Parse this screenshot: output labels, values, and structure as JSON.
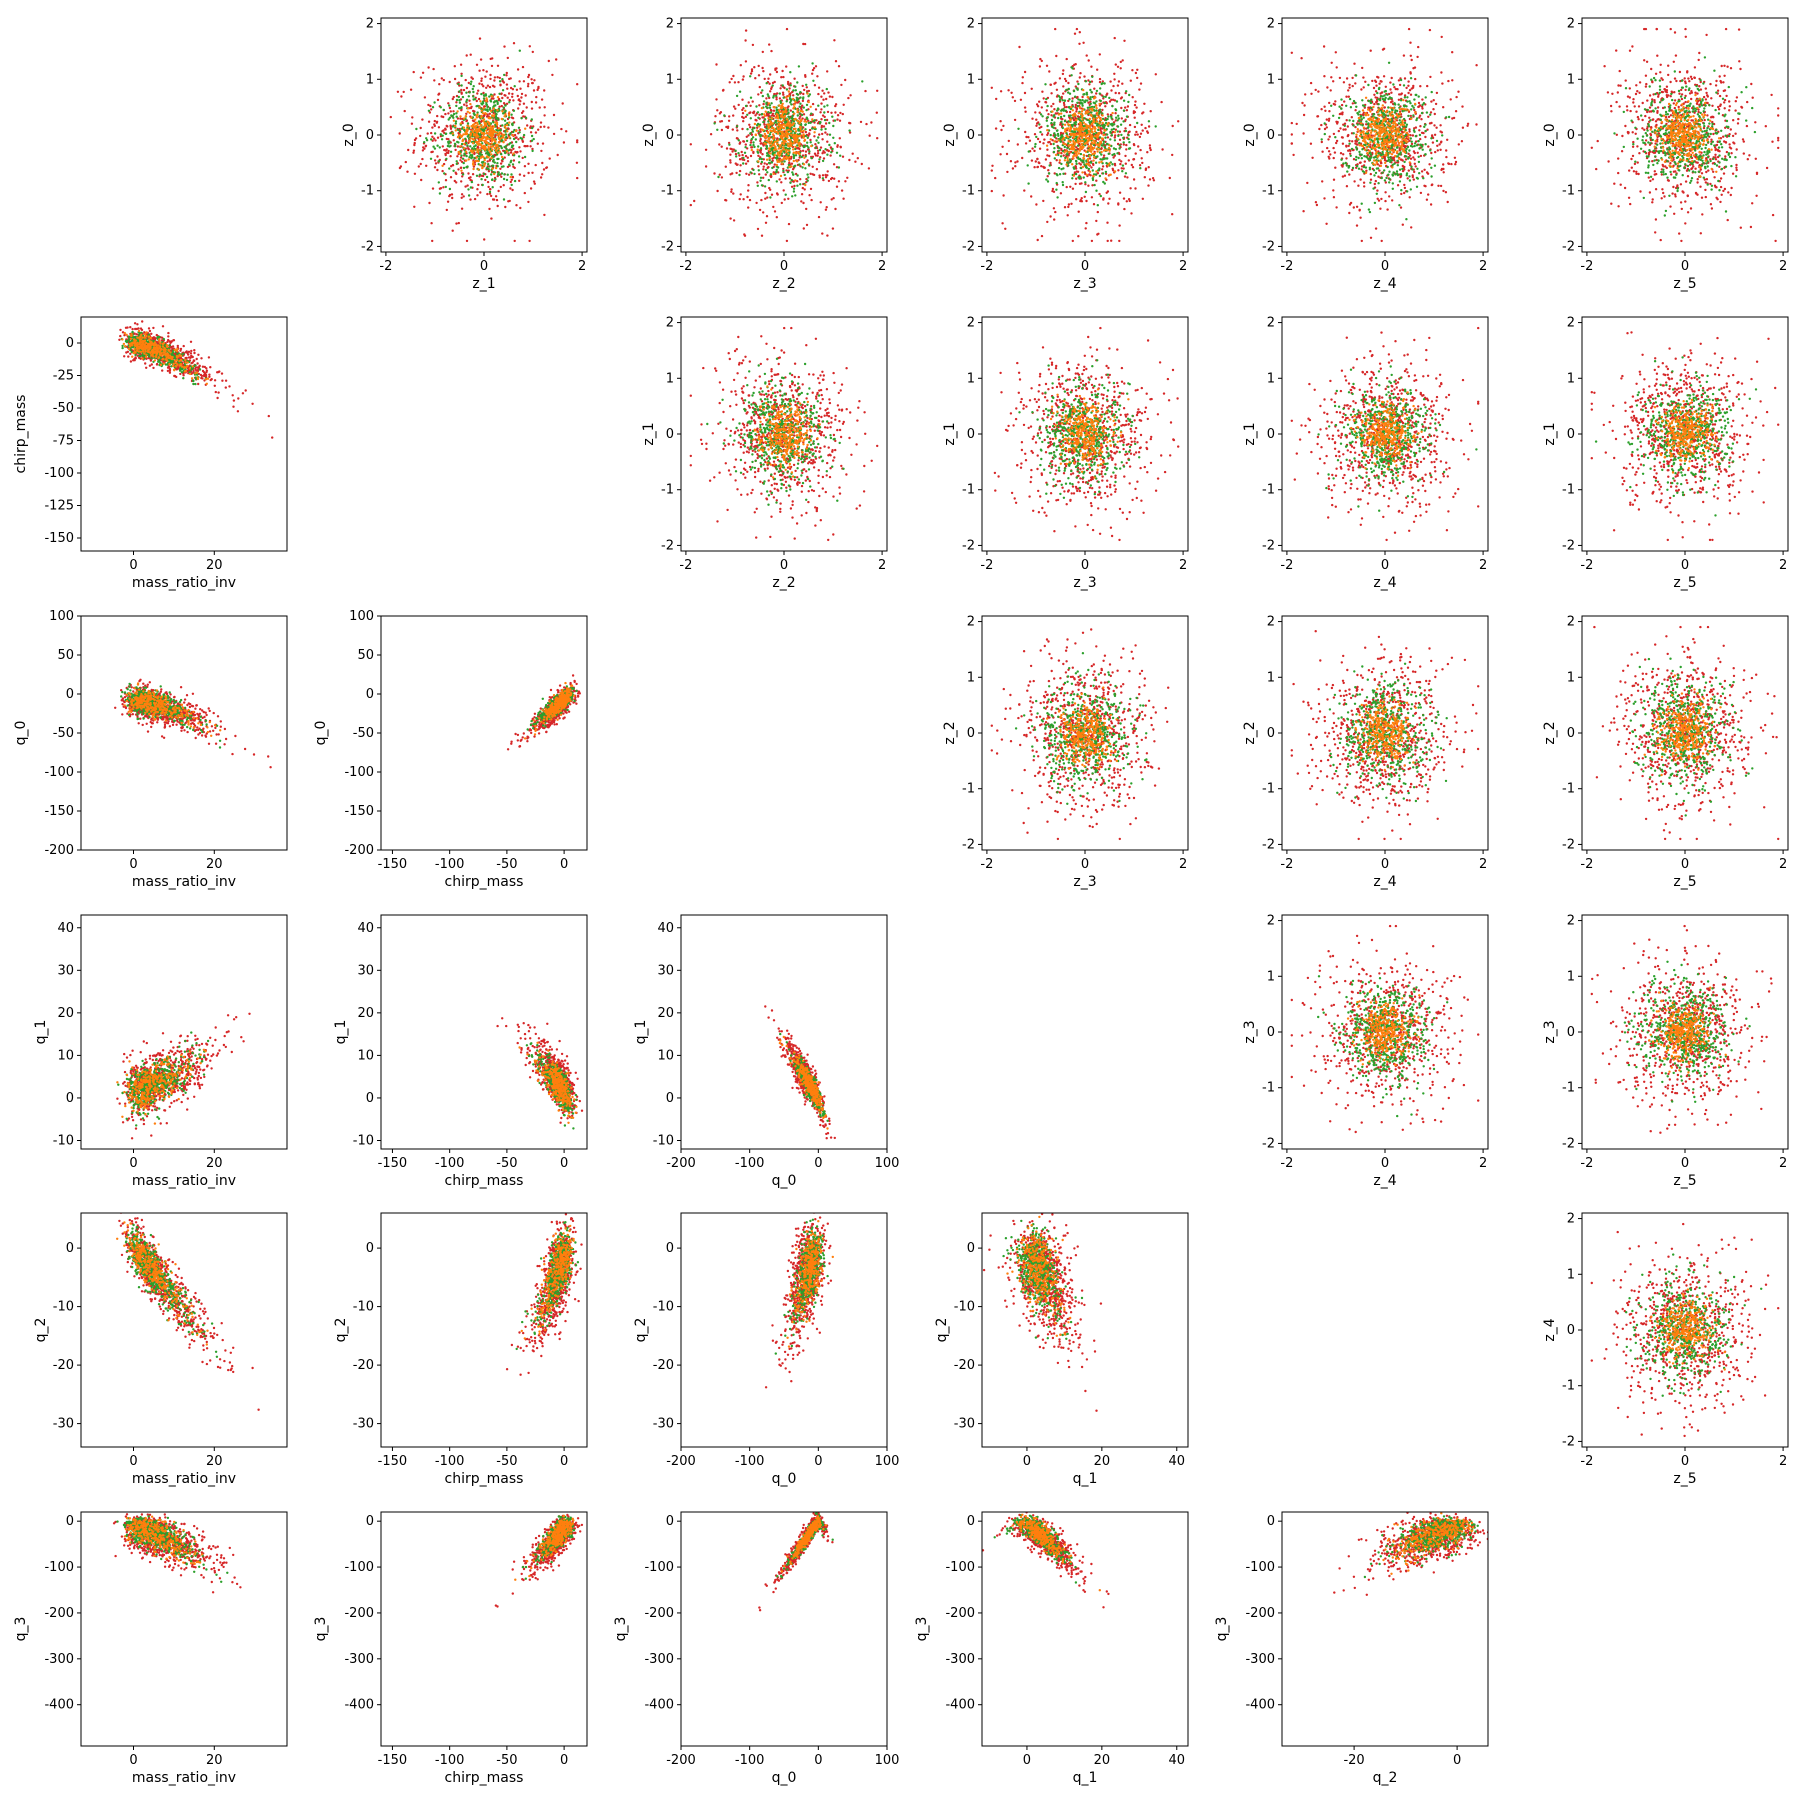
{
  "chart_data": {
    "type": "scatter",
    "layout": "lower-triangle pair grid (6 rows x 6 columns); left panels are physical-parameter pairs, right panels are latent z pairs",
    "series_colors": {
      "red": "#d62728",
      "green": "#2ca02c",
      "orange": "#ff7f0e"
    },
    "grid": false,
    "legend": "none",
    "variables": {
      "mass_ratio_inv": {
        "ticks": [
          "0",
          "20"
        ],
        "range": [
          -13,
          38
        ]
      },
      "chirp_mass": {
        "ticks": [
          "-150",
          "-100",
          "-50",
          "0"
        ],
        "range": [
          -160,
          20
        ],
        "yticks": [
          "0",
          "-25",
          "-50",
          "-75",
          "-100",
          "-125",
          "-150"
        ]
      },
      "q_0": {
        "ticks": [
          "-200",
          "-100",
          "0",
          "100"
        ],
        "range": [
          -200,
          100
        ],
        "yticks": [
          "100",
          "50",
          "0",
          "-50",
          "-100",
          "-150",
          "-200"
        ]
      },
      "q_1": {
        "ticks": [
          "0",
          "20",
          "40"
        ],
        "range": [
          -12,
          43
        ],
        "yticks": [
          "40",
          "30",
          "20",
          "10",
          "0",
          "-10"
        ]
      },
      "q_2": {
        "ticks": [
          "-20",
          "0"
        ],
        "range": [
          -34,
          6
        ],
        "yticks": [
          "0",
          "-10",
          "-20",
          "-30"
        ]
      },
      "q_3": {
        "yticks": [
          "0",
          "-100",
          "-200",
          "-300",
          "-400"
        ],
        "range": [
          -490,
          20
        ]
      },
      "z": {
        "ticks": [
          "-2",
          "0",
          "2"
        ],
        "yticks": [
          "2",
          "1",
          "0",
          "-1",
          "-2"
        ],
        "range": [
          -2.1,
          2.1
        ]
      }
    },
    "panels": [
      {
        "row": 0,
        "col": 1,
        "x": "z_1",
        "y": "z_0"
      },
      {
        "row": 0,
        "col": 2,
        "x": "z_2",
        "y": "z_0"
      },
      {
        "row": 0,
        "col": 3,
        "x": "z_3",
        "y": "z_0"
      },
      {
        "row": 0,
        "col": 4,
        "x": "z_4",
        "y": "z_0"
      },
      {
        "row": 0,
        "col": 5,
        "x": "z_5",
        "y": "z_0"
      },
      {
        "row": 1,
        "col": 0,
        "x": "mass_ratio_inv",
        "y": "chirp_mass"
      },
      {
        "row": 1,
        "col": 2,
        "x": "z_2",
        "y": "z_1"
      },
      {
        "row": 1,
        "col": 3,
        "x": "z_3",
        "y": "z_1"
      },
      {
        "row": 1,
        "col": 4,
        "x": "z_4",
        "y": "z_1"
      },
      {
        "row": 1,
        "col": 5,
        "x": "z_5",
        "y": "z_1"
      },
      {
        "row": 2,
        "col": 0,
        "x": "mass_ratio_inv",
        "y": "q_0"
      },
      {
        "row": 2,
        "col": 1,
        "x": "chirp_mass",
        "y": "q_0"
      },
      {
        "row": 2,
        "col": 3,
        "x": "z_3",
        "y": "z_2"
      },
      {
        "row": 2,
        "col": 4,
        "x": "z_4",
        "y": "z_2"
      },
      {
        "row": 2,
        "col": 5,
        "x": "z_5",
        "y": "z_2"
      },
      {
        "row": 3,
        "col": 0,
        "x": "mass_ratio_inv",
        "y": "q_1"
      },
      {
        "row": 3,
        "col": 1,
        "x": "chirp_mass",
        "y": "q_1"
      },
      {
        "row": 3,
        "col": 2,
        "x": "q_0",
        "y": "q_1"
      },
      {
        "row": 3,
        "col": 4,
        "x": "z_4",
        "y": "z_3"
      },
      {
        "row": 3,
        "col": 5,
        "x": "z_5",
        "y": "z_3"
      },
      {
        "row": 4,
        "col": 0,
        "x": "mass_ratio_inv",
        "y": "q_2"
      },
      {
        "row": 4,
        "col": 1,
        "x": "chirp_mass",
        "y": "q_2"
      },
      {
        "row": 4,
        "col": 2,
        "x": "q_0",
        "y": "q_2"
      },
      {
        "row": 4,
        "col": 3,
        "x": "q_1",
        "y": "q_2"
      },
      {
        "row": 4,
        "col": 5,
        "x": "z_5",
        "y": "z_4"
      },
      {
        "row": 5,
        "col": 0,
        "x": "mass_ratio_inv",
        "y": "q_3"
      },
      {
        "row": 5,
        "col": 1,
        "x": "chirp_mass",
        "y": "q_3"
      },
      {
        "row": 5,
        "col": 2,
        "x": "q_0",
        "y": "q_3"
      },
      {
        "row": 5,
        "col": 3,
        "x": "q_1",
        "y": "q_3"
      },
      {
        "row": 5,
        "col": 4,
        "x": "q_2",
        "y": "q_3"
      }
    ]
  }
}
